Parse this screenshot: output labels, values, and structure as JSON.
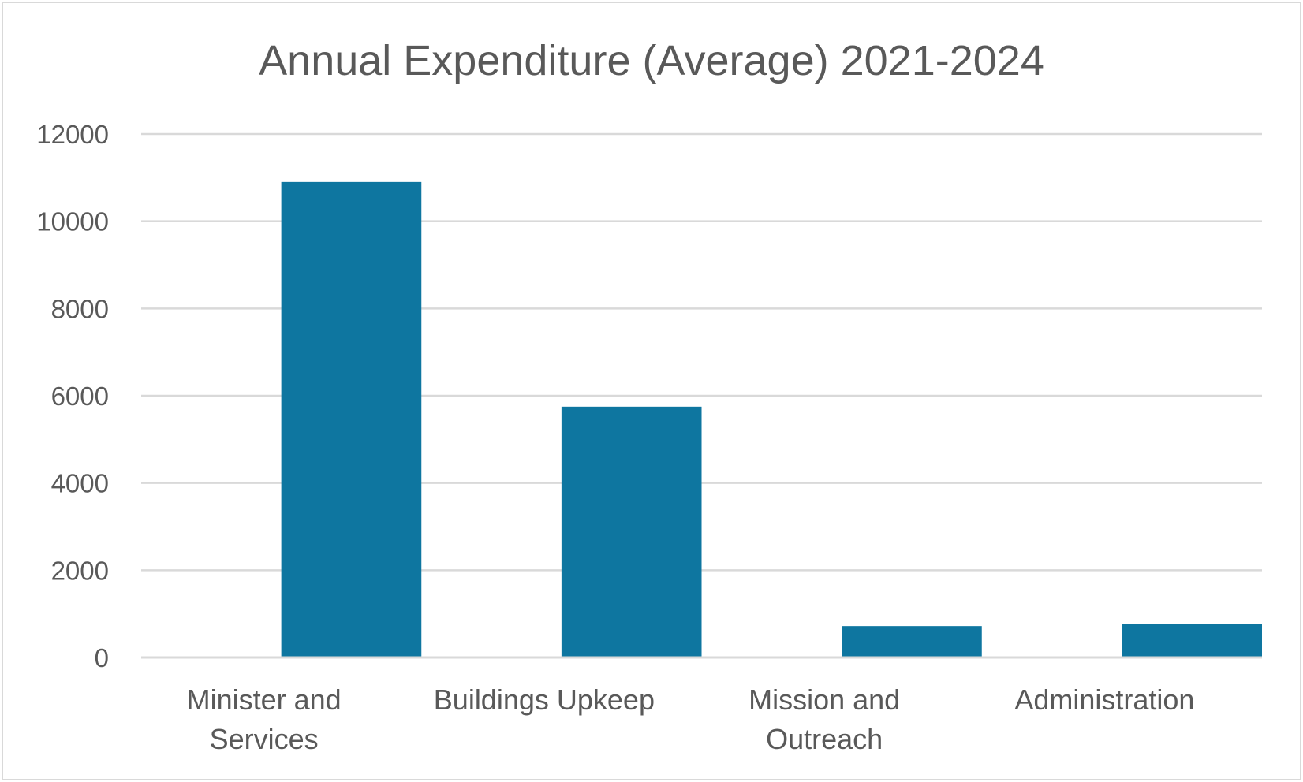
{
  "chart_data": {
    "type": "bar",
    "title": "Annual Expenditure (Average) 2021-2024",
    "xlabel": "",
    "ylabel": "",
    "categories": [
      [
        "Minister and",
        "Services"
      ],
      [
        "Buildings Upkeep"
      ],
      [
        "Mission and",
        "Outreach"
      ],
      [
        "Administration"
      ]
    ],
    "values": [
      10900,
      5750,
      720,
      760
    ],
    "ylim": [
      0,
      12000
    ],
    "yticks": [
      0,
      2000,
      4000,
      6000,
      8000,
      10000,
      12000
    ],
    "ytick_labels": [
      "0",
      "2000",
      "4000",
      "6000",
      "8000",
      "10000",
      "12000"
    ],
    "grid": true,
    "legend": "none",
    "bar_color": "#0e76a0"
  }
}
